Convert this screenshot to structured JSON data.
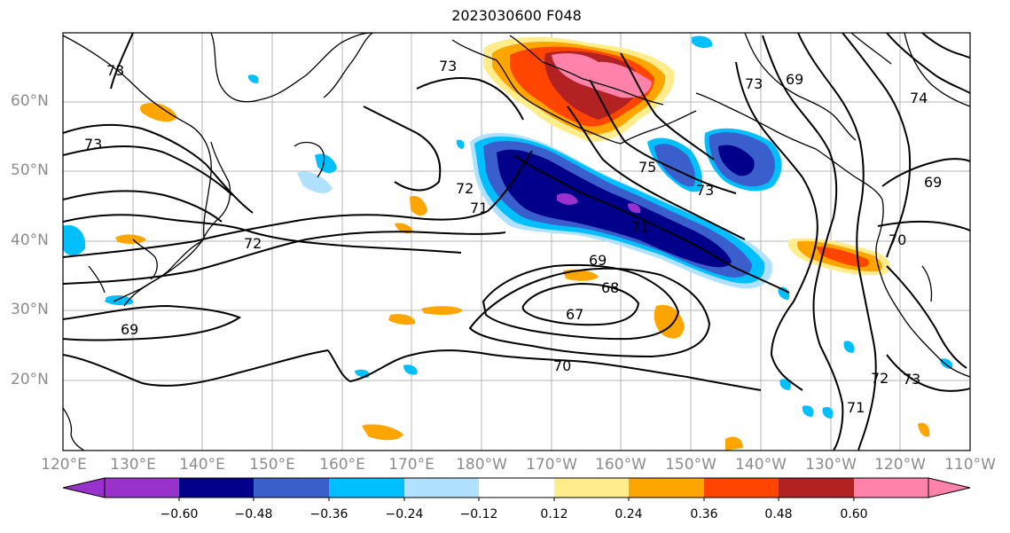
{
  "title": "2023030600 F048",
  "map": {
    "lat_labels": [
      "60°N",
      "50°N",
      "40°N",
      "30°N",
      "20°N"
    ],
    "lon_labels": [
      "120°E",
      "130°E",
      "140°E",
      "150°E",
      "160°E",
      "170°E",
      "180°W",
      "170°W",
      "160°W",
      "150°W",
      "140°W",
      "130°W",
      "120°W",
      "110°W"
    ],
    "contour_labels": [
      "73",
      "73",
      "72",
      "71",
      "72",
      "71",
      "75",
      "73",
      "73",
      "69",
      "69",
      "70",
      "69",
      "68",
      "67",
      "70",
      "71",
      "72",
      "73",
      "69",
      "74",
      "73"
    ]
  },
  "colorbar": {
    "labels": [
      "−0.60",
      "−0.48",
      "−0.36",
      "−0.24",
      "−0.12",
      "0.12",
      "0.24",
      "0.36",
      "0.48",
      "0.60"
    ],
    "colors": [
      "#9932cc",
      "#00008b",
      "#3a5fcd",
      "#00bfff",
      "#b0e2ff",
      "#ffffff",
      "#ffec8b",
      "#ffa500",
      "#ff4500",
      "#b22222",
      "#ff82ab"
    ]
  }
}
